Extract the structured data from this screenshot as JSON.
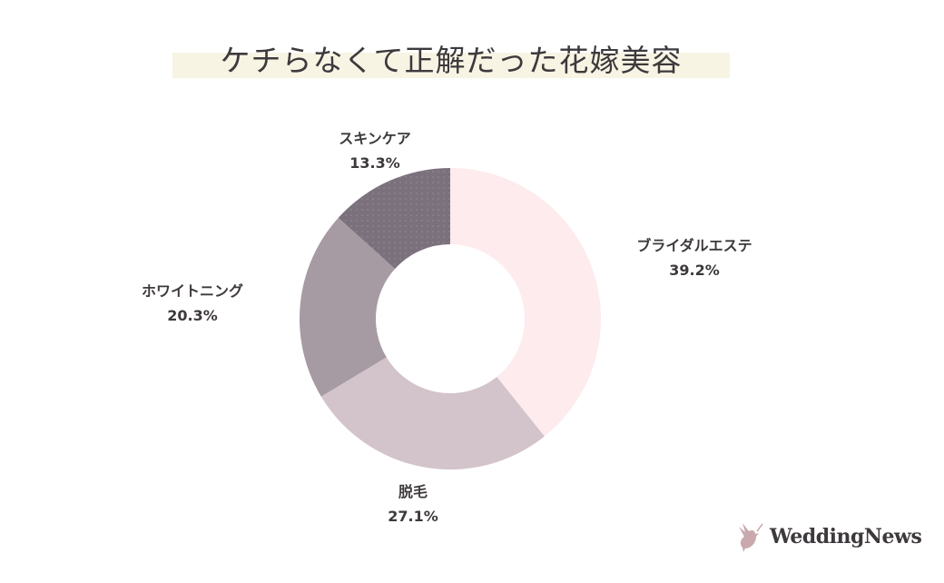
{
  "chart_data": {
    "type": "pie",
    "title": "ケチらなくて正解だった花嫁美容",
    "donut": true,
    "slices": [
      {
        "label": "ブライダルエステ",
        "value": 39.2,
        "display": "39.2%",
        "color": "#fdebee"
      },
      {
        "label": "脱毛",
        "value": 27.1,
        "display": "27.1%",
        "color": "#d3c3ca"
      },
      {
        "label": "ホワイトニング",
        "value": 20.3,
        "display": "20.3%",
        "color": "#a69ba3"
      },
      {
        "label": "スキンケア",
        "value": 13.3,
        "display": "13.3%",
        "color": "#7a717d"
      }
    ]
  },
  "logo": {
    "text": "WeddingNews"
  }
}
